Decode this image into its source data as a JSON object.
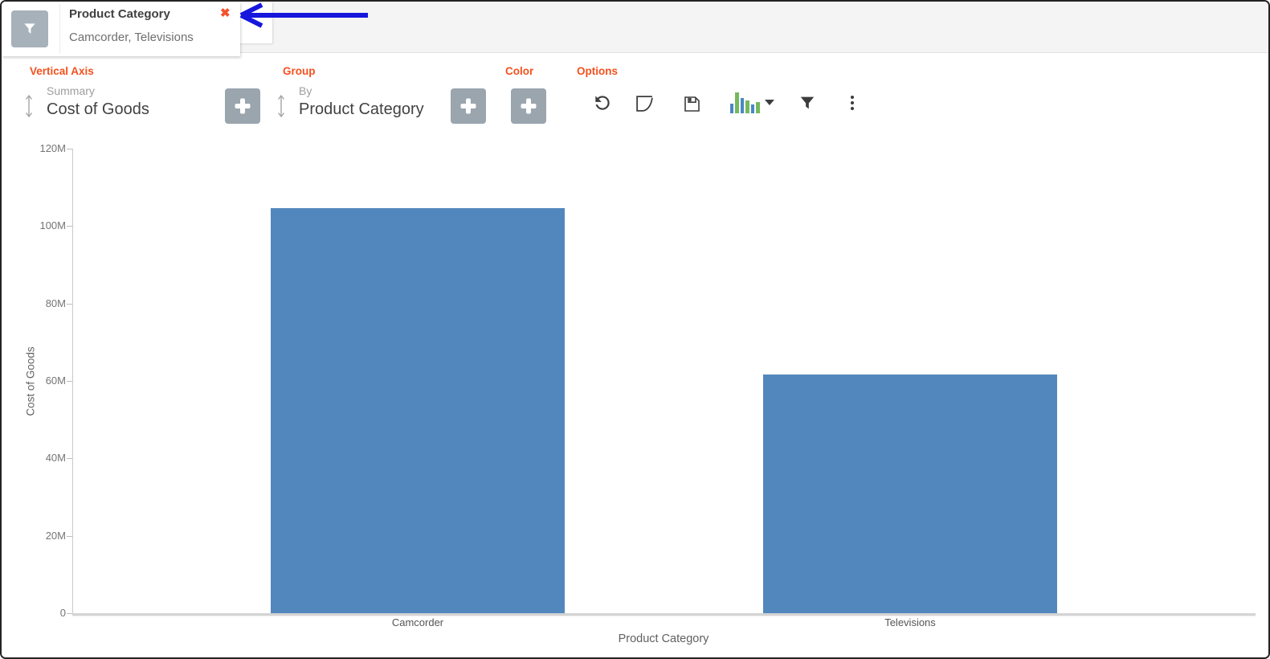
{
  "header": {
    "filter_chip": {
      "title": "Product Category",
      "values": "Camcorder, Televisions",
      "close_glyph": "✖"
    }
  },
  "toolbar": {
    "sections": {
      "vertical_axis": {
        "label": "Vertical Axis",
        "sub_label": "Summary",
        "value": "Cost of Goods"
      },
      "group": {
        "label": "Group",
        "sub_label": "By",
        "value": "Product Category"
      },
      "color": {
        "label": "Color"
      },
      "options": {
        "label": "Options"
      }
    },
    "add_glyph": "+",
    "option_icons": [
      "reset-icon",
      "annotation-curve-icon",
      "save-icon",
      "chart-type-icon",
      "filter-icon",
      "more-options-icon"
    ]
  },
  "colors": {
    "accent_orange": "#f4511e",
    "bar_blue": "#5287be",
    "button_gray": "#9aa5ae",
    "filter_button_gray": "#a7b1ba",
    "close_red": "#f4502e",
    "arrow_blue": "#1616dd",
    "icon_dark": "#3d3d3d",
    "chart_icon_blue": "#4b87c5",
    "chart_icon_green": "#74b95c"
  },
  "chart_data": {
    "type": "bar",
    "categories": [
      "Camcorder",
      "Televisions"
    ],
    "values_millions": [
      104.6,
      61.7
    ],
    "series_name": "Cost of Goods",
    "xlabel": "Product Category",
    "ylabel": "Cost of Goods",
    "ylim_millions": [
      0,
      120
    ],
    "ytick_step_millions": 20,
    "ytick_labels": [
      "0",
      "20M",
      "40M",
      "60M",
      "80M",
      "100M",
      "120M"
    ],
    "bar_color": "#5287be",
    "grid": false,
    "legend": false
  }
}
